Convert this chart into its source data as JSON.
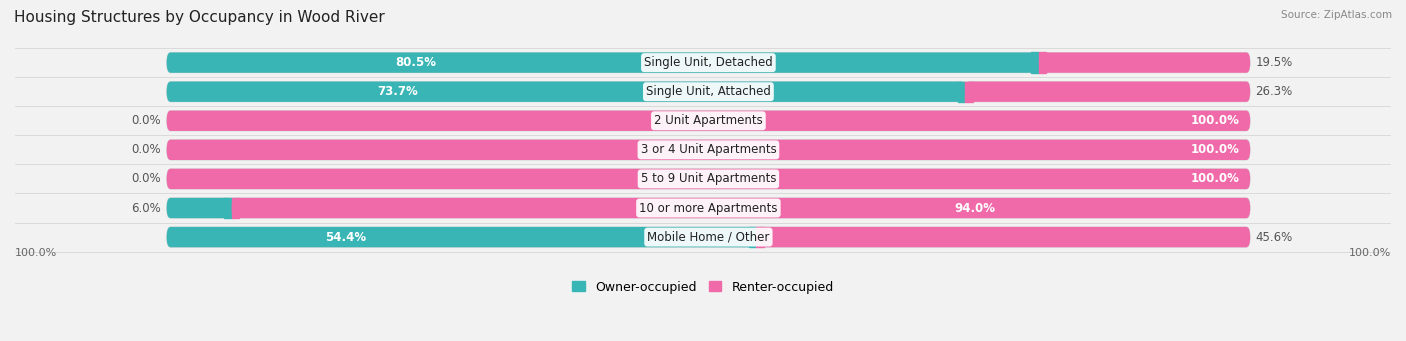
{
  "title": "Housing Structures by Occupancy in Wood River",
  "source": "Source: ZipAtlas.com",
  "categories": [
    "Single Unit, Detached",
    "Single Unit, Attached",
    "2 Unit Apartments",
    "3 or 4 Unit Apartments",
    "5 to 9 Unit Apartments",
    "10 or more Apartments",
    "Mobile Home / Other"
  ],
  "owner_pct": [
    80.5,
    73.7,
    0.0,
    0.0,
    0.0,
    6.0,
    54.4
  ],
  "renter_pct": [
    19.5,
    26.3,
    100.0,
    100.0,
    100.0,
    94.0,
    45.6
  ],
  "owner_color": "#39b5b5",
  "renter_color": "#f06aaa",
  "owner_label": "Owner-occupied",
  "renter_label": "Renter-occupied",
  "bg_color": "#f2f2f2",
  "row_bg_color": "#ffffff",
  "title_fontsize": 11,
  "label_fontsize": 8.5,
  "source_fontsize": 7.5,
  "legend_fontsize": 9,
  "axis_label_fontsize": 8,
  "legend_color_owner": "#39b5b5",
  "legend_color_renter": "#f06aaa"
}
